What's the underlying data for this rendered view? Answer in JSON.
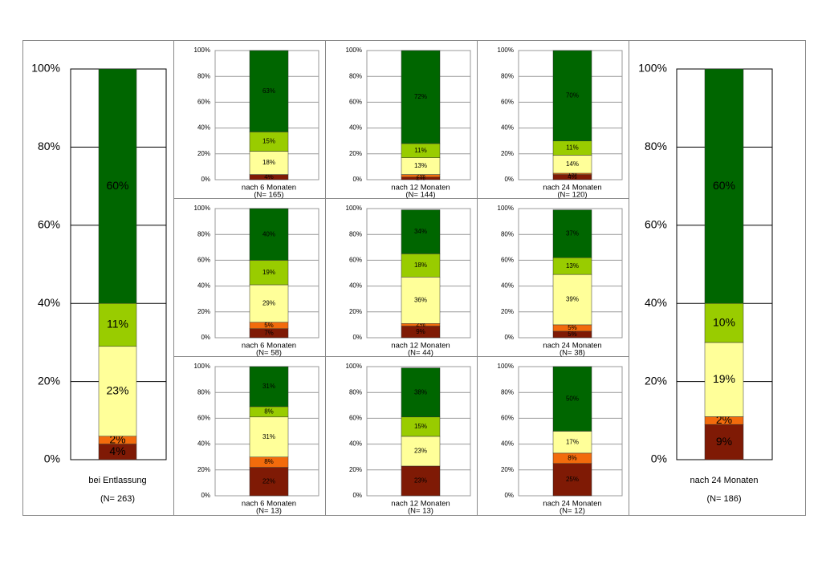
{
  "chart_data": [
    {
      "type": "bar",
      "stacked": true,
      "categories": [
        "bei Entlassung"
      ],
      "n_label": "(N= 263)",
      "ylim": [
        0,
        100
      ],
      "yticks": [
        {
          "value": 0,
          "label": "0%"
        },
        {
          "value": 20,
          "label": "20%"
        },
        {
          "value": 40,
          "label": "40%"
        },
        {
          "value": 60,
          "label": "60%"
        },
        {
          "value": 80,
          "label": "80%"
        },
        {
          "value": 100,
          "label": "100%"
        }
      ],
      "grid": true,
      "series": [
        {
          "color": "#7f1a05",
          "values": [
            4
          ],
          "value_labels": [
            "4%"
          ]
        },
        {
          "color": "#f26b0c",
          "values": [
            2
          ],
          "value_labels": [
            "2%"
          ]
        },
        {
          "color": "#ffff99",
          "values": [
            23
          ],
          "value_labels": [
            "23%"
          ]
        },
        {
          "color": "#99cc00",
          "values": [
            11
          ],
          "value_labels": [
            "11%"
          ]
        },
        {
          "color": "#006600",
          "values": [
            60
          ],
          "value_labels": [
            "60%"
          ]
        }
      ]
    },
    {
      "type": "bar",
      "stacked": true,
      "categories": [
        "nach 6 Monaten"
      ],
      "n_label": "(N= 165)",
      "ylim": [
        0,
        100
      ],
      "yticks": [
        {
          "value": 0,
          "label": "0%"
        },
        {
          "value": 20,
          "label": "20%"
        },
        {
          "value": 40,
          "label": "40%"
        },
        {
          "value": 60,
          "label": "60%"
        },
        {
          "value": 80,
          "label": "80%"
        },
        {
          "value": 100,
          "label": "100%"
        }
      ],
      "grid": true,
      "series": [
        {
          "color": "#7f1a05",
          "values": [
            4
          ],
          "value_labels": [
            "4%"
          ]
        },
        {
          "color": "#f26b0c",
          "values": [
            0
          ],
          "value_labels": [
            null
          ]
        },
        {
          "color": "#ffff99",
          "values": [
            18
          ],
          "value_labels": [
            "18%"
          ]
        },
        {
          "color": "#99cc00",
          "values": [
            15
          ],
          "value_labels": [
            "15%"
          ]
        },
        {
          "color": "#006600",
          "values": [
            63
          ],
          "value_labels": [
            "63%"
          ]
        }
      ]
    },
    {
      "type": "bar",
      "stacked": true,
      "categories": [
        "nach 12 Monaten"
      ],
      "n_label": "(N= 144)",
      "ylim": [
        0,
        100
      ],
      "yticks": [
        {
          "value": 0,
          "label": "0%"
        },
        {
          "value": 20,
          "label": "20%"
        },
        {
          "value": 40,
          "label": "40%"
        },
        {
          "value": 60,
          "label": "60%"
        },
        {
          "value": 80,
          "label": "80%"
        },
        {
          "value": 100,
          "label": "100%"
        }
      ],
      "grid": true,
      "series": [
        {
          "color": "#7f1a05",
          "values": [
            2
          ],
          "value_labels": [
            "2%"
          ]
        },
        {
          "color": "#f26b0c",
          "values": [
            2
          ],
          "value_labels": [
            "2%"
          ]
        },
        {
          "color": "#ffff99",
          "values": [
            13
          ],
          "value_labels": [
            "13%"
          ]
        },
        {
          "color": "#99cc00",
          "values": [
            11
          ],
          "value_labels": [
            "11%"
          ]
        },
        {
          "color": "#006600",
          "values": [
            72
          ],
          "value_labels": [
            "72%"
          ]
        }
      ]
    },
    {
      "type": "bar",
      "stacked": true,
      "categories": [
        "nach 24 Monaten"
      ],
      "n_label": "(N= 120)",
      "ylim": [
        0,
        100
      ],
      "yticks": [
        {
          "value": 0,
          "label": "0%"
        },
        {
          "value": 20,
          "label": "20%"
        },
        {
          "value": 40,
          "label": "40%"
        },
        {
          "value": 60,
          "label": "60%"
        },
        {
          "value": 80,
          "label": "80%"
        },
        {
          "value": 100,
          "label": "100%"
        }
      ],
      "grid": true,
      "series": [
        {
          "color": "#7f1a05",
          "values": [
            4
          ],
          "value_labels": [
            "4%"
          ]
        },
        {
          "color": "#f26b0c",
          "values": [
            1
          ],
          "value_labels": [
            "1%"
          ]
        },
        {
          "color": "#ffff99",
          "values": [
            14
          ],
          "value_labels": [
            "14%"
          ]
        },
        {
          "color": "#99cc00",
          "values": [
            11
          ],
          "value_labels": [
            "11%"
          ]
        },
        {
          "color": "#006600",
          "values": [
            70
          ],
          "value_labels": [
            "70%"
          ]
        }
      ]
    },
    {
      "type": "bar",
      "stacked": true,
      "categories": [
        "nach 6 Monaten"
      ],
      "n_label": "(N= 58)",
      "ylim": [
        0,
        100
      ],
      "yticks": [
        {
          "value": 0,
          "label": "0%"
        },
        {
          "value": 20,
          "label": "20%"
        },
        {
          "value": 40,
          "label": "40%"
        },
        {
          "value": 60,
          "label": "60%"
        },
        {
          "value": 80,
          "label": "80%"
        },
        {
          "value": 100,
          "label": "100%"
        }
      ],
      "grid": true,
      "series": [
        {
          "color": "#7f1a05",
          "values": [
            7
          ],
          "value_labels": [
            "7%"
          ]
        },
        {
          "color": "#f26b0c",
          "values": [
            5
          ],
          "value_labels": [
            "5%"
          ]
        },
        {
          "color": "#ffff99",
          "values": [
            29
          ],
          "value_labels": [
            "29%"
          ]
        },
        {
          "color": "#99cc00",
          "values": [
            19
          ],
          "value_labels": [
            "19%"
          ]
        },
        {
          "color": "#006600",
          "values": [
            40
          ],
          "value_labels": [
            "40%"
          ]
        }
      ]
    },
    {
      "type": "bar",
      "stacked": true,
      "categories": [
        "nach 12 Monaten"
      ],
      "n_label": "(N= 44)",
      "ylim": [
        0,
        100
      ],
      "yticks": [
        {
          "value": 0,
          "label": "0%"
        },
        {
          "value": 20,
          "label": "20%"
        },
        {
          "value": 40,
          "label": "40%"
        },
        {
          "value": 60,
          "label": "60%"
        },
        {
          "value": 80,
          "label": "80%"
        },
        {
          "value": 100,
          "label": "100%"
        }
      ],
      "grid": true,
      "series": [
        {
          "color": "#7f1a05",
          "values": [
            9
          ],
          "value_labels": [
            "9%"
          ]
        },
        {
          "color": "#f26b0c",
          "values": [
            2
          ],
          "value_labels": [
            "2%"
          ]
        },
        {
          "color": "#ffff99",
          "values": [
            36
          ],
          "value_labels": [
            "36%"
          ]
        },
        {
          "color": "#99cc00",
          "values": [
            18
          ],
          "value_labels": [
            "18%"
          ]
        },
        {
          "color": "#006600",
          "values": [
            34
          ],
          "value_labels": [
            "34%"
          ]
        }
      ]
    },
    {
      "type": "bar",
      "stacked": true,
      "categories": [
        "nach 24 Monaten"
      ],
      "n_label": "(N= 38)",
      "ylim": [
        0,
        100
      ],
      "yticks": [
        {
          "value": 0,
          "label": "0%"
        },
        {
          "value": 20,
          "label": "20%"
        },
        {
          "value": 40,
          "label": "40%"
        },
        {
          "value": 60,
          "label": "60%"
        },
        {
          "value": 80,
          "label": "80%"
        },
        {
          "value": 100,
          "label": "100%"
        }
      ],
      "grid": true,
      "series": [
        {
          "color": "#7f1a05",
          "values": [
            5
          ],
          "value_labels": [
            "5%"
          ]
        },
        {
          "color": "#f26b0c",
          "values": [
            5
          ],
          "value_labels": [
            "5%"
          ]
        },
        {
          "color": "#ffff99",
          "values": [
            39
          ],
          "value_labels": [
            "39%"
          ]
        },
        {
          "color": "#99cc00",
          "values": [
            13
          ],
          "value_labels": [
            "13%"
          ]
        },
        {
          "color": "#006600",
          "values": [
            37
          ],
          "value_labels": [
            "37%"
          ]
        }
      ]
    },
    {
      "type": "bar",
      "stacked": true,
      "categories": [
        "nach 6 Monaten"
      ],
      "n_label": "(N= 13)",
      "ylim": [
        0,
        100
      ],
      "yticks": [
        {
          "value": 0,
          "label": "0%"
        },
        {
          "value": 20,
          "label": "20%"
        },
        {
          "value": 40,
          "label": "40%"
        },
        {
          "value": 60,
          "label": "60%"
        },
        {
          "value": 80,
          "label": "80%"
        },
        {
          "value": 100,
          "label": "100%"
        }
      ],
      "grid": true,
      "series": [
        {
          "color": "#7f1a05",
          "values": [
            22
          ],
          "value_labels": [
            "22%"
          ]
        },
        {
          "color": "#f26b0c",
          "values": [
            8
          ],
          "value_labels": [
            "8%"
          ]
        },
        {
          "color": "#ffff99",
          "values": [
            31
          ],
          "value_labels": [
            "31%"
          ]
        },
        {
          "color": "#99cc00",
          "values": [
            8
          ],
          "value_labels": [
            "8%"
          ]
        },
        {
          "color": "#006600",
          "values": [
            31
          ],
          "value_labels": [
            "31%"
          ]
        }
      ]
    },
    {
      "type": "bar",
      "stacked": true,
      "categories": [
        "nach 12 Monaten"
      ],
      "n_label": "(N= 13)",
      "ylim": [
        0,
        100
      ],
      "yticks": [
        {
          "value": 0,
          "label": "0%"
        },
        {
          "value": 20,
          "label": "20%"
        },
        {
          "value": 40,
          "label": "40%"
        },
        {
          "value": 60,
          "label": "60%"
        },
        {
          "value": 80,
          "label": "80%"
        },
        {
          "value": 100,
          "label": "100%"
        }
      ],
      "grid": true,
      "series": [
        {
          "color": "#7f1a05",
          "values": [
            23
          ],
          "value_labels": [
            "23%"
          ]
        },
        {
          "color": "#f26b0c",
          "values": [
            0
          ],
          "value_labels": [
            null
          ]
        },
        {
          "color": "#ffff99",
          "values": [
            23
          ],
          "value_labels": [
            "23%"
          ]
        },
        {
          "color": "#99cc00",
          "values": [
            15
          ],
          "value_labels": [
            "15%"
          ]
        },
        {
          "color": "#006600",
          "values": [
            38
          ],
          "value_labels": [
            "38%"
          ]
        }
      ]
    },
    {
      "type": "bar",
      "stacked": true,
      "categories": [
        "nach 24 Monaten"
      ],
      "n_label": "(N= 12)",
      "ylim": [
        0,
        100
      ],
      "yticks": [
        {
          "value": 0,
          "label": "0%"
        },
        {
          "value": 20,
          "label": "20%"
        },
        {
          "value": 40,
          "label": "40%"
        },
        {
          "value": 60,
          "label": "60%"
        },
        {
          "value": 80,
          "label": "80%"
        },
        {
          "value": 100,
          "label": "100%"
        }
      ],
      "grid": true,
      "series": [
        {
          "color": "#7f1a05",
          "values": [
            25
          ],
          "value_labels": [
            "25%"
          ]
        },
        {
          "color": "#f26b0c",
          "values": [
            8
          ],
          "value_labels": [
            "8%"
          ]
        },
        {
          "color": "#ffff99",
          "values": [
            17
          ],
          "value_labels": [
            "17%"
          ]
        },
        {
          "color": "#99cc00",
          "values": [
            0
          ],
          "value_labels": [
            null
          ]
        },
        {
          "color": "#006600",
          "values": [
            50
          ],
          "value_labels": [
            "50%"
          ]
        }
      ]
    },
    {
      "type": "bar",
      "stacked": true,
      "categories": [
        "nach 24 Monaten"
      ],
      "n_label": "(N= 186)",
      "ylim": [
        0,
        100
      ],
      "yticks": [
        {
          "value": 0,
          "label": "0%"
        },
        {
          "value": 20,
          "label": "20%"
        },
        {
          "value": 40,
          "label": "40%"
        },
        {
          "value": 60,
          "label": "60%"
        },
        {
          "value": 80,
          "label": "80%"
        },
        {
          "value": 100,
          "label": "100%"
        }
      ],
      "grid": true,
      "series": [
        {
          "color": "#7f1a05",
          "values": [
            9
          ],
          "value_labels": [
            "9%"
          ]
        },
        {
          "color": "#f26b0c",
          "values": [
            2
          ],
          "value_labels": [
            "2%"
          ]
        },
        {
          "color": "#ffff99",
          "values": [
            19
          ],
          "value_labels": [
            "19%"
          ]
        },
        {
          "color": "#99cc00",
          "values": [
            10
          ],
          "value_labels": [
            "10%"
          ]
        },
        {
          "color": "#006600",
          "values": [
            60
          ],
          "value_labels": [
            "60%"
          ]
        }
      ]
    }
  ]
}
